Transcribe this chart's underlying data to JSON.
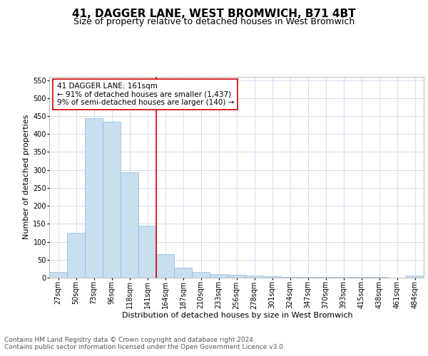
{
  "title": "41, DAGGER LANE, WEST BROMWICH, B71 4BT",
  "subtitle": "Size of property relative to detached houses in West Bromwich",
  "xlabel": "Distribution of detached houses by size in West Bromwich",
  "ylabel": "Number of detached properties",
  "bin_labels": [
    "27sqm",
    "50sqm",
    "73sqm",
    "96sqm",
    "118sqm",
    "141sqm",
    "164sqm",
    "187sqm",
    "210sqm",
    "233sqm",
    "256sqm",
    "278sqm",
    "301sqm",
    "324sqm",
    "347sqm",
    "370sqm",
    "393sqm",
    "415sqm",
    "438sqm",
    "461sqm",
    "484sqm"
  ],
  "bar_heights": [
    15,
    125,
    445,
    435,
    293,
    145,
    65,
    28,
    15,
    10,
    8,
    5,
    3,
    2,
    2,
    1,
    1,
    1,
    1,
    0,
    6
  ],
  "bar_color": "#c8dff0",
  "bar_edge_color": "#8ab8d8",
  "vline_color": "#cc0000",
  "annotation_box_color": "#cc0000",
  "annotation_text": "41 DAGGER LANE: 161sqm\n← 91% of detached houses are smaller (1,437)\n9% of semi-detached houses are larger (140) →",
  "ylim": [
    0,
    560
  ],
  "yticks": [
    0,
    50,
    100,
    150,
    200,
    250,
    300,
    350,
    400,
    450,
    500,
    550
  ],
  "footer_text": "Contains HM Land Registry data © Crown copyright and database right 2024.\nContains public sector information licensed under the Open Government Licence v3.0.",
  "bg_color": "#ffffff",
  "grid_color": "#ccdaed",
  "title_fontsize": 11,
  "subtitle_fontsize": 9,
  "axis_label_fontsize": 8,
  "tick_fontsize": 7,
  "annotation_fontsize": 7.5,
  "footer_fontsize": 6.5
}
